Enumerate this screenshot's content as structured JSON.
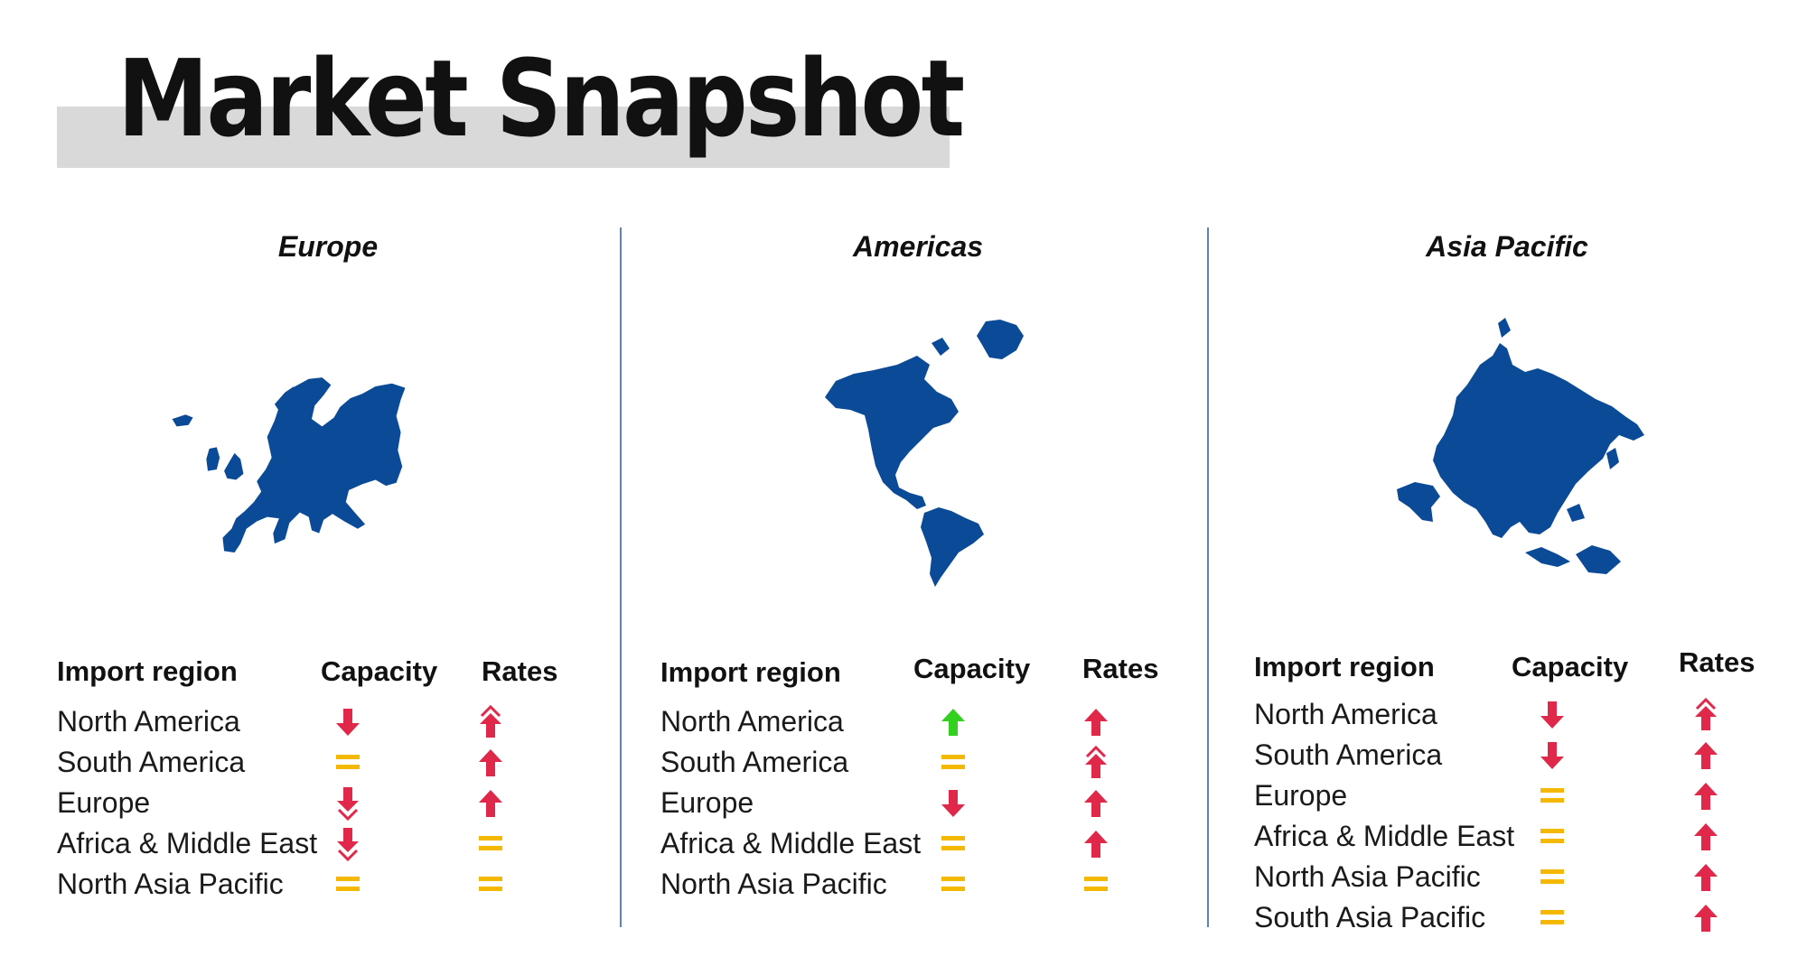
{
  "title": "Market Snapshot",
  "colors": {
    "map": "#0b4a96",
    "divider": "#5b84b5",
    "up": "#e0284a",
    "down": "#e0284a",
    "up_green": "#33d11f",
    "flat": "#f5b800",
    "title_band": "#d9d9d9"
  },
  "table_headers": {
    "region": "Import region",
    "capacity": "Capacity",
    "rates": "Rates"
  },
  "regions": [
    {
      "name": "Europe",
      "rows": [
        {
          "label": "North America",
          "capacity": "down-icon",
          "rates": "strong-up-icon"
        },
        {
          "label": "South America",
          "capacity": "flat-icon",
          "rates": "up-icon"
        },
        {
          "label": "Europe",
          "capacity": "strong-down-icon",
          "rates": "up-icon"
        },
        {
          "label": "Africa & Middle East",
          "capacity": "strong-down-icon",
          "rates": "flat-icon"
        },
        {
          "label": "North Asia Pacific",
          "capacity": "flat-icon",
          "rates": "flat-icon"
        }
      ]
    },
    {
      "name": "Americas",
      "rows": [
        {
          "label": "North America",
          "capacity": "up-green-icon",
          "rates": "up-icon"
        },
        {
          "label": "South America",
          "capacity": "flat-icon",
          "rates": "strong-up-icon"
        },
        {
          "label": "Europe",
          "capacity": "down-icon",
          "rates": "up-icon"
        },
        {
          "label": "Africa & Middle East",
          "capacity": "flat-icon",
          "rates": "up-icon"
        },
        {
          "label": "North Asia Pacific",
          "capacity": "flat-icon",
          "rates": "flat-icon"
        }
      ]
    },
    {
      "name": "Asia Pacific",
      "rows": [
        {
          "label": "North America",
          "capacity": "down-icon",
          "rates": "strong-up-icon"
        },
        {
          "label": "South America",
          "capacity": "down-icon",
          "rates": "up-icon"
        },
        {
          "label": "Europe",
          "capacity": "flat-icon",
          "rates": "up-icon"
        },
        {
          "label": "Africa & Middle East",
          "capacity": "flat-icon",
          "rates": "up-icon"
        },
        {
          "label": "North Asia Pacific",
          "capacity": "flat-icon",
          "rates": "up-icon"
        },
        {
          "label": "South Asia Pacific",
          "capacity": "flat-icon",
          "rates": "up-icon"
        }
      ]
    }
  ]
}
